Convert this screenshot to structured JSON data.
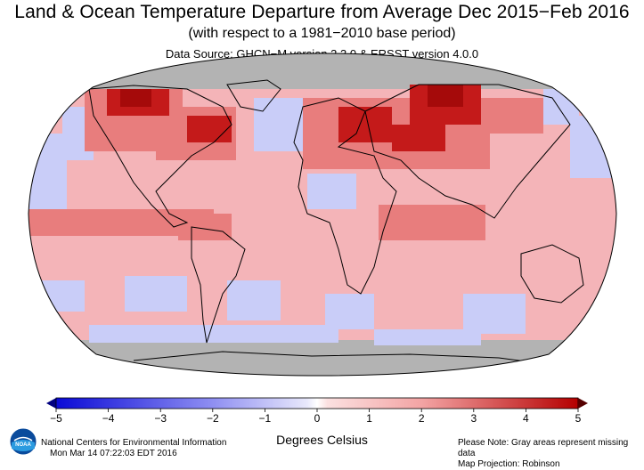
{
  "header": {
    "title": "Land & Ocean Temperature Departure from Average Dec 2015−Feb 2016",
    "subtitle": "(with respect to a 1981−2010 base period)",
    "source": "Data Source: GHCN−M version 3.3.0 & ERSST version 4.0.0"
  },
  "colorbar": {
    "ticks": [
      "−5",
      "−4",
      "−3",
      "−2",
      "−1",
      "0",
      "1",
      "2",
      "3",
      "4",
      "5"
    ],
    "label": "Degrees Celsius",
    "colors": {
      "min": "#0a0ad6",
      "neg_mid": "#8f8ff2",
      "zero": "#ffffff",
      "pos_mid": "#f3a4a4",
      "max": "#b50000",
      "arrow_left": "#000080",
      "arrow_right": "#550000"
    }
  },
  "map": {
    "projection_note": "Map Projection: Robinson",
    "missing_color": "#b3b3b3",
    "ocean_base_color": "#f4b4b8",
    "cool_color": "#c9cdf8",
    "warm_color": "#dd3b3b",
    "hot_color": "#b81212"
  },
  "footer": {
    "org": "National Centers for Environmental Information",
    "timestamp": "Mon Mar 14 07:22:03 EDT 2016",
    "note": "Please Note: Gray areas represent missing data",
    "projection": "Map Projection: Robinson",
    "logo_text": "NOAA",
    "logo_icon": "noaa-logo-icon"
  }
}
